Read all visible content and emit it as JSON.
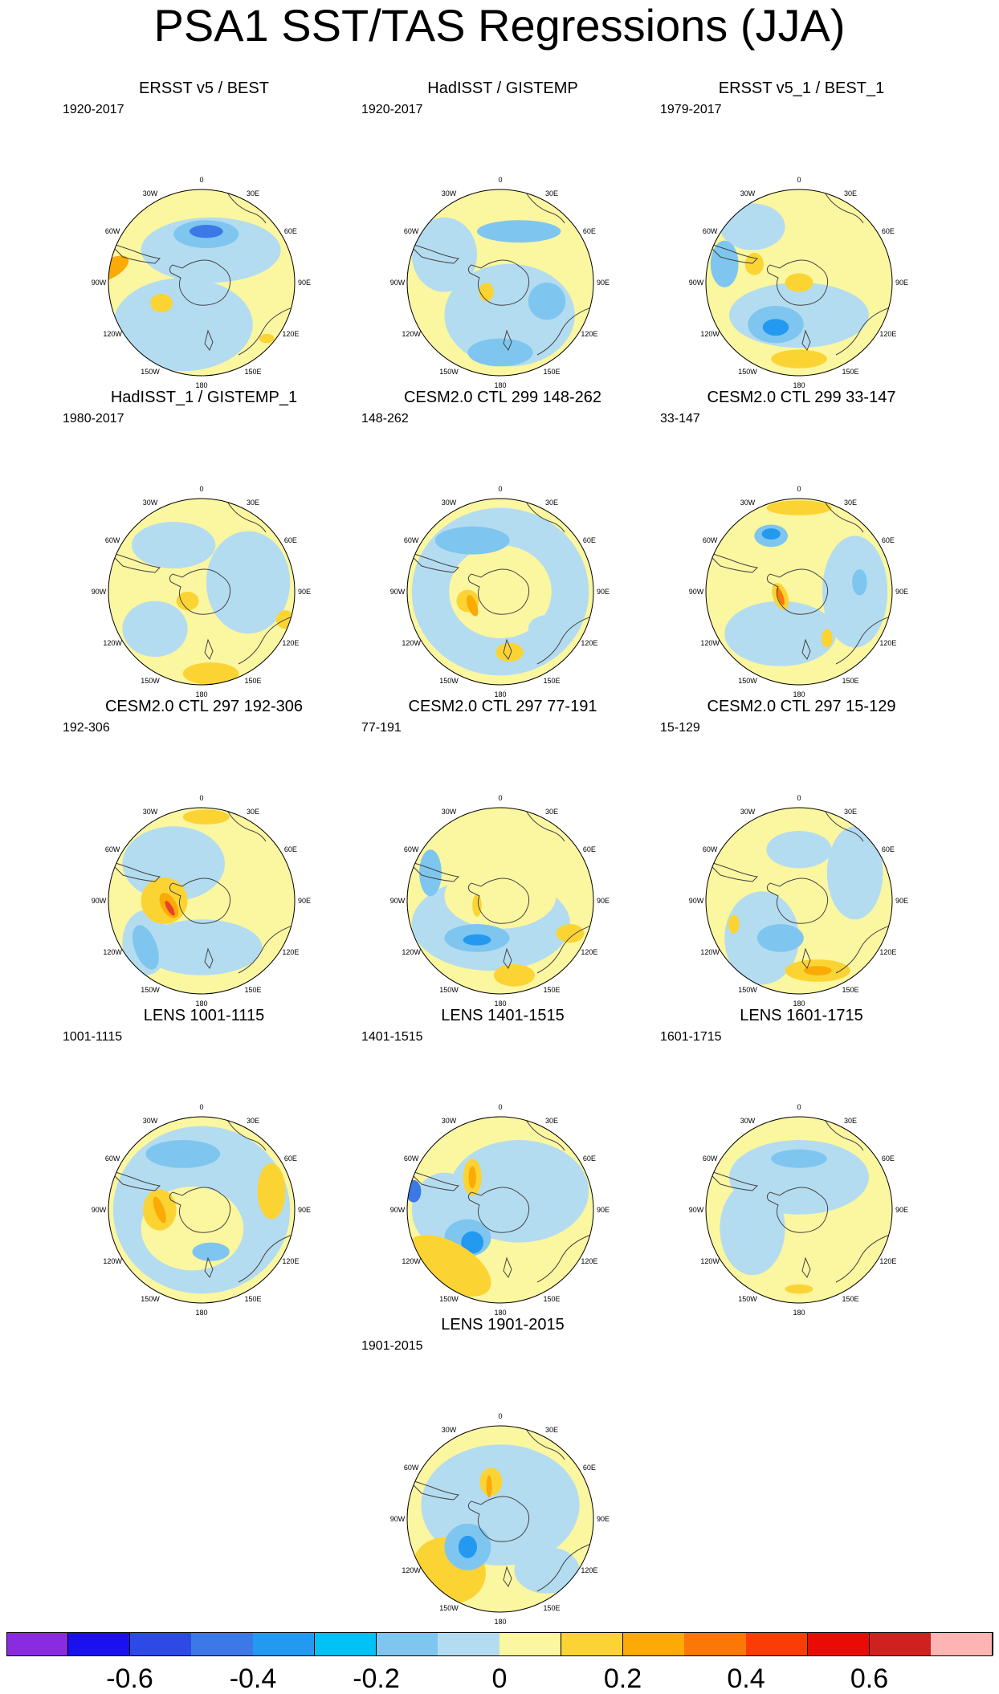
{
  "title": "PSA1 SST/TAS Regressions (JJA)",
  "lon_labels": [
    "0",
    "30E",
    "60E",
    "90E",
    "120E",
    "150E",
    "180",
    "150W",
    "120W",
    "90W",
    "60W",
    "30W"
  ],
  "panels": [
    {
      "title": "ERSST v5 / BEST",
      "period": "1920-2017"
    },
    {
      "title": "HadISST / GISTEMP",
      "period": "1920-2017"
    },
    {
      "title": "ERSST v5_1 / BEST_1",
      "period": "1979-2017"
    },
    {
      "title": "HadISST_1 / GISTEMP_1",
      "period": "1980-2017"
    },
    {
      "title": "CESM2.0 CTL 299 148-262",
      "period": "148-262"
    },
    {
      "title": "CESM2.0 CTL 299 33-147",
      "period": "33-147"
    },
    {
      "title": "CESM2.0 CTL 297 192-306",
      "period": "192-306"
    },
    {
      "title": "CESM2.0 CTL 297 77-191",
      "period": "77-191"
    },
    {
      "title": "CESM2.0 CTL 297 15-129",
      "period": "15-129"
    },
    {
      "title": "LENS 1001-1115",
      "period": "1001-1115"
    },
    {
      "title": "LENS 1401-1515",
      "period": "1401-1515"
    },
    {
      "title": "LENS 1601-1715",
      "period": "1601-1715"
    },
    {
      "title": "LENS 1901-2015",
      "period": "1901-2015"
    }
  ],
  "colorbar": {
    "colors": [
      "#8a2be2",
      "#1a10f0",
      "#2d4ae6",
      "#3c78e6",
      "#2499f0",
      "#00c2f5",
      "#7ec6ef",
      "#b4dcf0",
      "#fbf6a0",
      "#fbd434",
      "#fbaa06",
      "#fb7806",
      "#fb3c06",
      "#ea0a06",
      "#d02020",
      "#ffb4b4"
    ],
    "ticks": [
      "-0.6",
      "-0.4",
      "-0.2",
      "0",
      "0.2",
      "0.4",
      "0.6"
    ],
    "tick_values": [
      -0.6,
      -0.4,
      -0.2,
      0,
      0.2,
      0.4,
      0.6
    ],
    "range": [
      -0.8,
      0.8
    ]
  }
}
